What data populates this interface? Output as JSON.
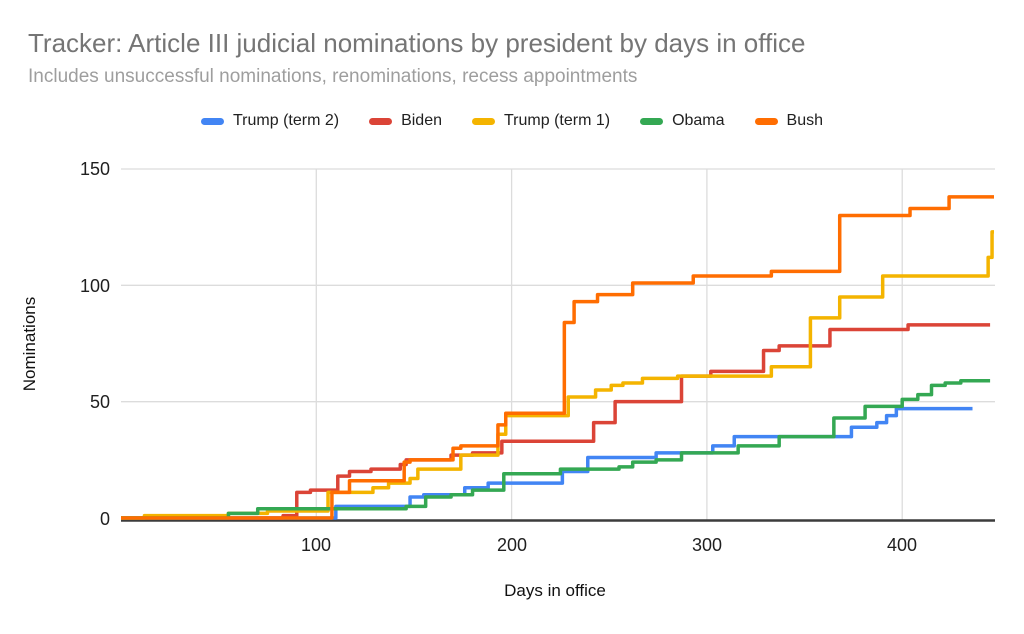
{
  "chart_data": {
    "type": "line",
    "step": "after",
    "title": "Tracker: Article III judicial nominations by president by days in office",
    "subtitle": "Includes unsuccessful nominations, renominations, recess appointments",
    "xlabel": "Days in office",
    "ylabel": "Nominations",
    "xlim": [
      0,
      447
    ],
    "ylim": [
      0,
      150
    ],
    "xticks": [
      "100",
      "200",
      "300",
      "400"
    ],
    "yticks": [
      "150",
      "100",
      "50",
      "0"
    ],
    "grid": true,
    "legend_position": "top",
    "series": [
      {
        "name": "Trump (term 2)",
        "color": "#4285F4",
        "points": [
          [
            0,
            0
          ],
          [
            110,
            5
          ],
          [
            148,
            9
          ],
          [
            155,
            10
          ],
          [
            176,
            13
          ],
          [
            188,
            15
          ],
          [
            226,
            20
          ],
          [
            239,
            26
          ],
          [
            274,
            28
          ],
          [
            303,
            31
          ],
          [
            314,
            35
          ],
          [
            374,
            39
          ],
          [
            387,
            41
          ],
          [
            392,
            44
          ],
          [
            397,
            47
          ],
          [
            436,
            47
          ]
        ]
      },
      {
        "name": "Biden",
        "color": "#DB4437",
        "points": [
          [
            0,
            0
          ],
          [
            83,
            1
          ],
          [
            90,
            11
          ],
          [
            97,
            12
          ],
          [
            111,
            18
          ],
          [
            117,
            20
          ],
          [
            128,
            21
          ],
          [
            143,
            23
          ],
          [
            146,
            25
          ],
          [
            169,
            27
          ],
          [
            180,
            28
          ],
          [
            195,
            33
          ],
          [
            242,
            41
          ],
          [
            253,
            50
          ],
          [
            287,
            61
          ],
          [
            302,
            63
          ],
          [
            329,
            72
          ],
          [
            337,
            74
          ],
          [
            363,
            81
          ],
          [
            403,
            83
          ],
          [
            445,
            83
          ]
        ]
      },
      {
        "name": "Trump (term 1)",
        "color": "#F4B400",
        "points": [
          [
            0,
            0
          ],
          [
            12,
            1
          ],
          [
            55,
            2
          ],
          [
            75,
            3
          ],
          [
            106,
            11
          ],
          [
            129,
            13
          ],
          [
            137,
            15
          ],
          [
            148,
            17
          ],
          [
            152,
            21
          ],
          [
            174,
            27
          ],
          [
            193,
            36
          ],
          [
            197,
            44
          ],
          [
            229,
            52
          ],
          [
            243,
            55
          ],
          [
            251,
            57
          ],
          [
            257,
            58
          ],
          [
            267,
            60
          ],
          [
            285,
            61
          ],
          [
            333,
            65
          ],
          [
            353,
            86
          ],
          [
            368,
            95
          ],
          [
            390,
            104
          ],
          [
            444,
            112
          ],
          [
            446,
            123
          ],
          [
            447,
            123
          ]
        ]
      },
      {
        "name": "Obama",
        "color": "#34A853",
        "points": [
          [
            0,
            0
          ],
          [
            55,
            2
          ],
          [
            70,
            4
          ],
          [
            146,
            5
          ],
          [
            156,
            9
          ],
          [
            169,
            10
          ],
          [
            180,
            12
          ],
          [
            196,
            19
          ],
          [
            225,
            21
          ],
          [
            255,
            22
          ],
          [
            262,
            24
          ],
          [
            274,
            25
          ],
          [
            287,
            28
          ],
          [
            316,
            31
          ],
          [
            337,
            35
          ],
          [
            365,
            43
          ],
          [
            381,
            48
          ],
          [
            400,
            51
          ],
          [
            408,
            53
          ],
          [
            415,
            57
          ],
          [
            422,
            58
          ],
          [
            430,
            59
          ],
          [
            445,
            59
          ]
        ]
      },
      {
        "name": "Bush",
        "color": "#FF6D01",
        "points": [
          [
            0,
            0
          ],
          [
            108,
            11
          ],
          [
            117,
            16
          ],
          [
            145,
            24
          ],
          [
            148,
            25
          ],
          [
            170,
            30
          ],
          [
            174,
            31
          ],
          [
            193,
            40
          ],
          [
            197,
            45
          ],
          [
            227,
            84
          ],
          [
            232,
            93
          ],
          [
            244,
            96
          ],
          [
            262,
            101
          ],
          [
            293,
            104
          ],
          [
            333,
            106
          ],
          [
            368,
            130
          ],
          [
            404,
            133
          ],
          [
            424,
            138
          ],
          [
            447,
            138
          ]
        ]
      }
    ]
  }
}
